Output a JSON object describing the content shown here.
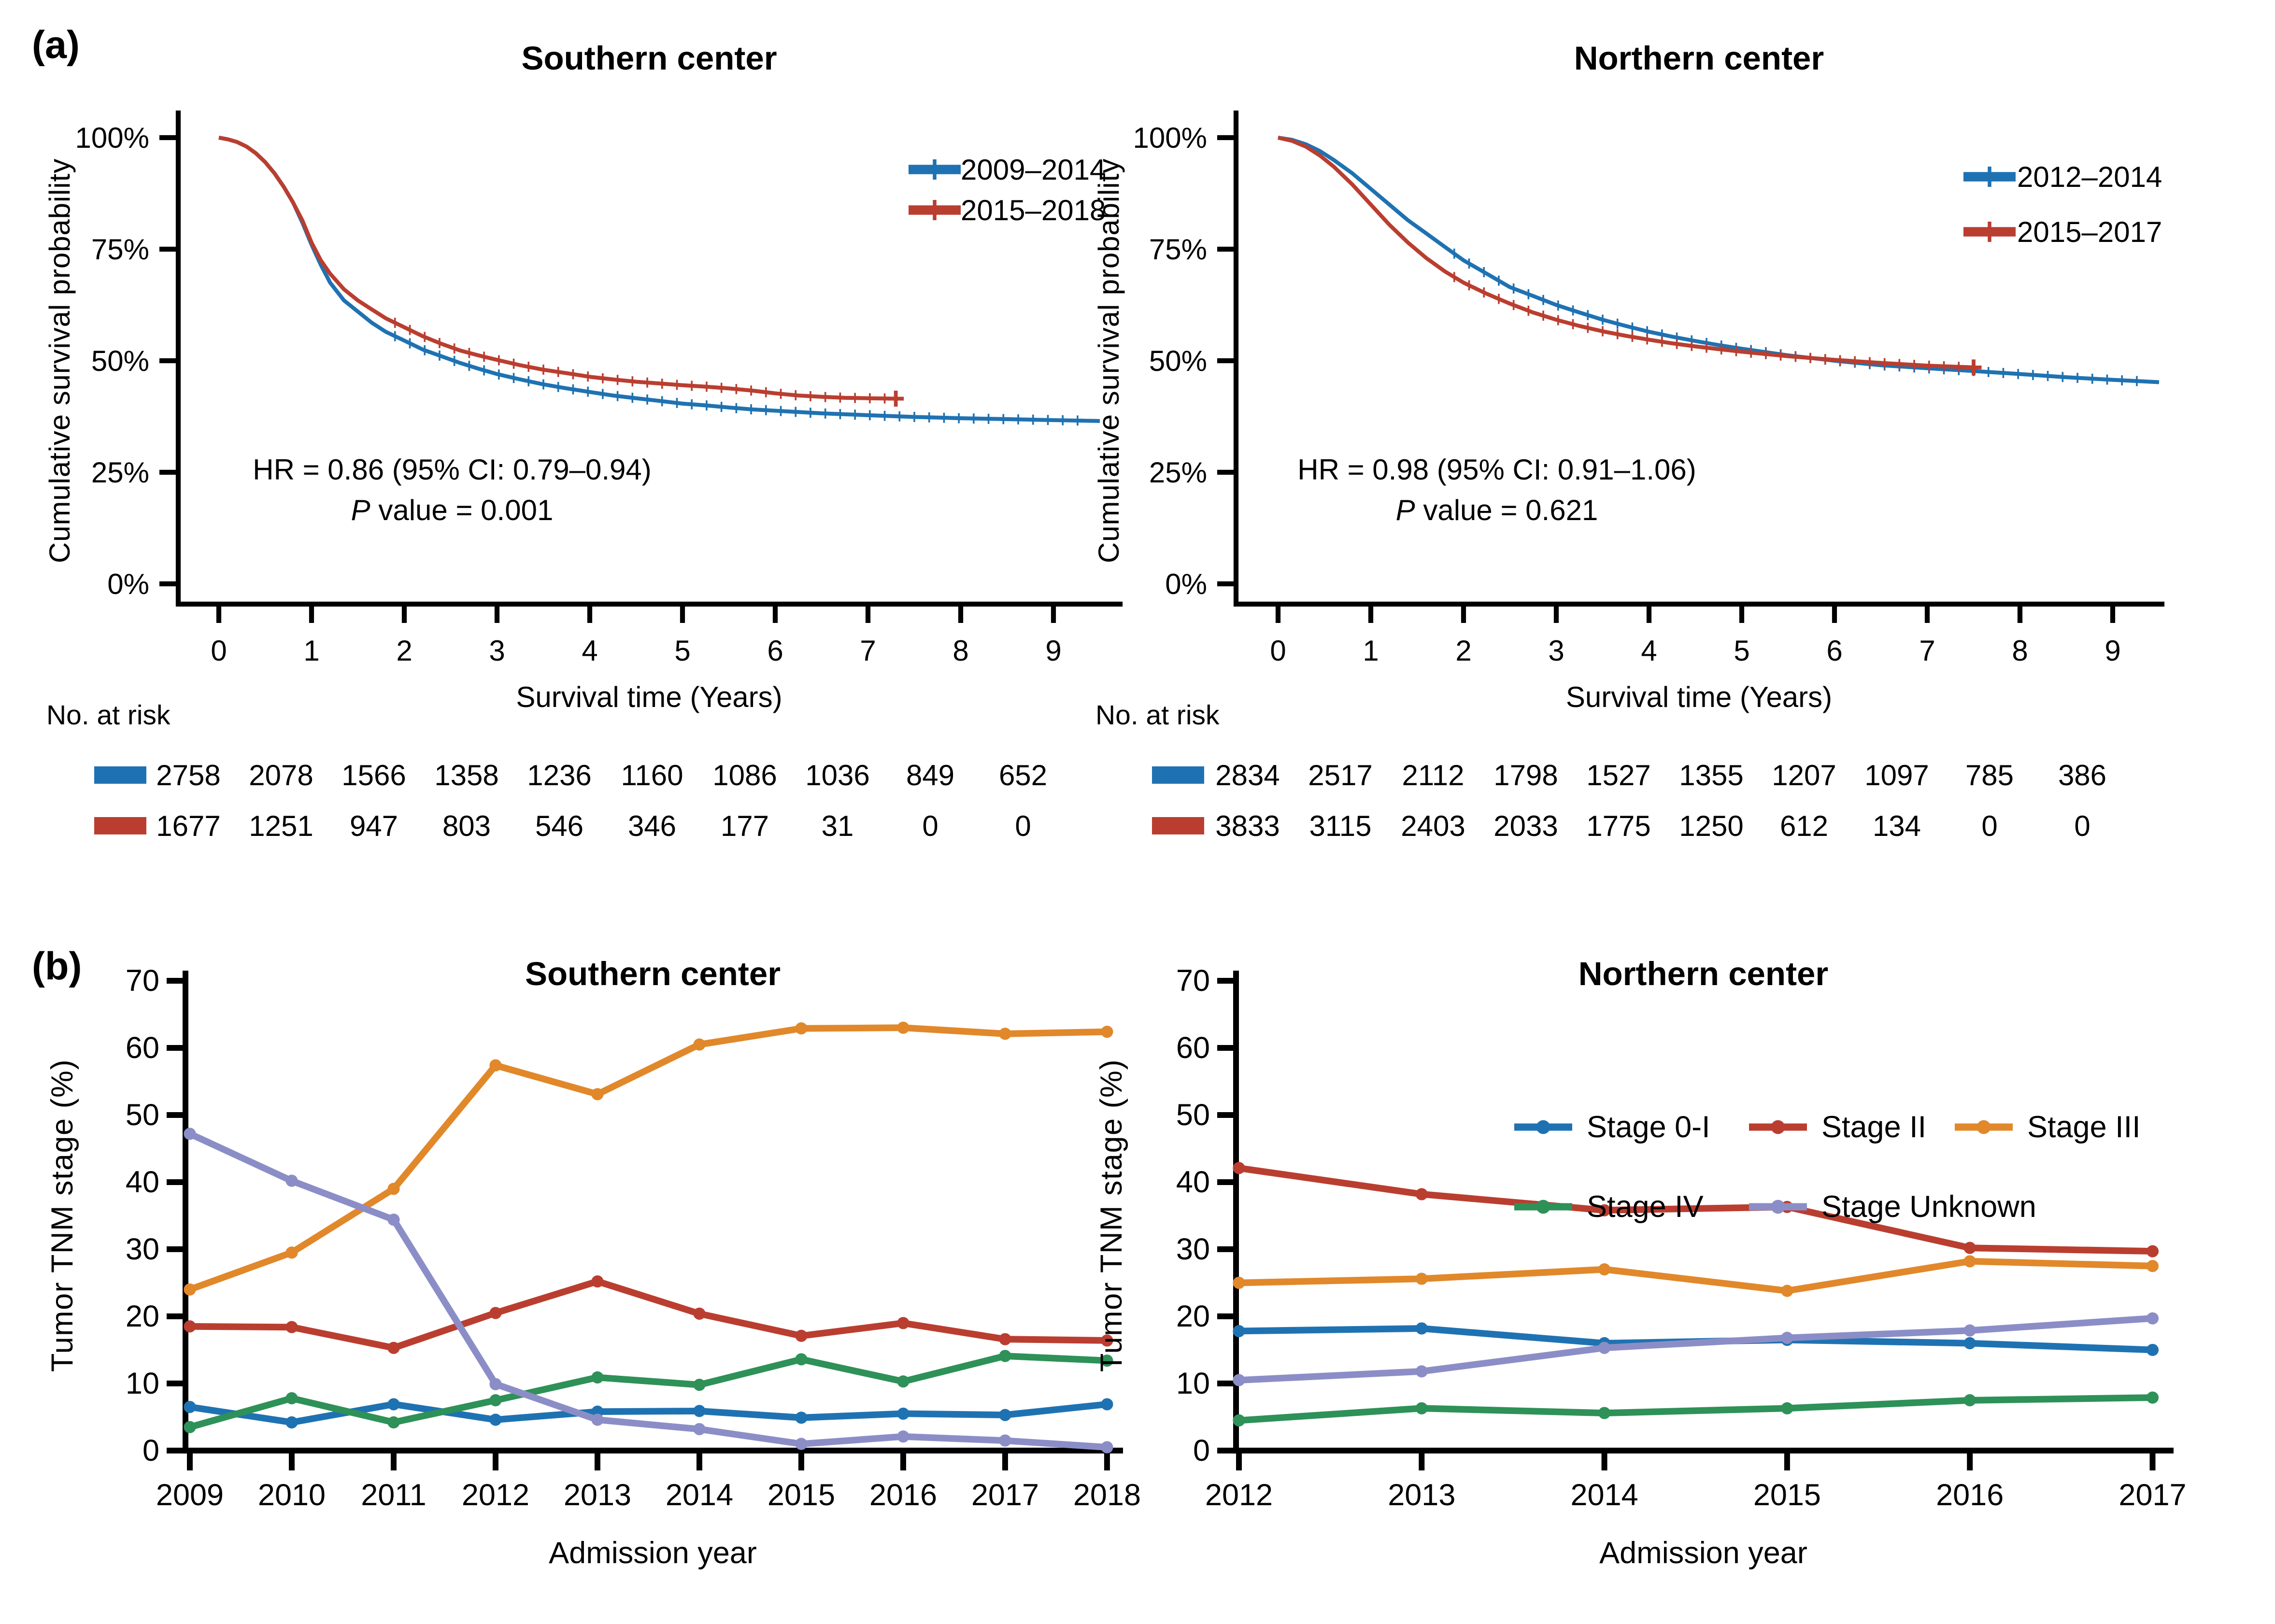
{
  "figure": {
    "background": "#FFFFFF"
  },
  "panel_a": {
    "label": "(a)"
  },
  "panel_b": {
    "label": "(b)"
  },
  "colors": {
    "blue": "#1F72B2",
    "red": "#BA3E30",
    "orange": "#E1882B",
    "green": "#2E9158",
    "purple": "#8B8EC6",
    "axis": "#000000"
  },
  "chart_data": [
    {
      "id": "km_southern",
      "type": "line",
      "subtype": "kaplan-meier",
      "title": "Southern center",
      "xlabel": "Survival time (Years)",
      "ylabel": "Cumulative survival probability",
      "xticks": [
        0,
        1,
        2,
        3,
        4,
        5,
        6,
        7,
        8,
        9
      ],
      "xlim": [
        0,
        9.5
      ],
      "ylim": [
        0,
        100
      ],
      "yticks": [
        {
          "v": 0,
          "label": "0%"
        },
        {
          "v": 25,
          "label": "25%"
        },
        {
          "v": 50,
          "label": "50%"
        },
        {
          "v": 75,
          "label": "75%"
        },
        {
          "v": 100,
          "label": "100%"
        }
      ],
      "legend_position": "top-right-inside",
      "annotation_hr": "HR = 0.86 (95% CI: 0.79–0.94)",
      "annotation_p_italic": "P",
      "annotation_p_rest": " value = 0.001",
      "risk_label": "No. at risk",
      "series": [
        {
          "name": "2009–2014",
          "color": "#1F72B2",
          "end_marker": false,
          "x": [
            0,
            0.1,
            0.2,
            0.3,
            0.4,
            0.5,
            0.6,
            0.7,
            0.8,
            0.9,
            1.0,
            1.1,
            1.2,
            1.35,
            1.5,
            1.65,
            1.8,
            2.0,
            2.2,
            2.4,
            2.6,
            2.8,
            3.0,
            3.25,
            3.5,
            3.75,
            4.0,
            4.25,
            4.5,
            4.75,
            5.0,
            5.25,
            5.5,
            5.75,
            6.0,
            6.5,
            7.0,
            7.5,
            8.0,
            8.5,
            9.0,
            9.5
          ],
          "y": [
            100,
            99.6,
            99,
            98,
            96.5,
            94.5,
            92,
            89,
            85.5,
            81,
            76,
            71.5,
            67.5,
            63.5,
            61,
            58.5,
            56.5,
            54.5,
            52.5,
            51,
            49.5,
            48.2,
            47,
            45.8,
            44.7,
            43.8,
            43,
            42.2,
            41.6,
            41,
            40.4,
            40,
            39.5,
            39.1,
            38.8,
            38.2,
            37.8,
            37.4,
            37.1,
            36.9,
            36.7,
            36.5
          ],
          "risk": [
            "2758",
            "2078",
            "1566",
            "1358",
            "1236",
            "1160",
            "1086",
            "1036",
            "849",
            "652"
          ]
        },
        {
          "name": "2015–2018",
          "color": "#BA3E30",
          "end_marker": true,
          "x": [
            0,
            0.1,
            0.2,
            0.3,
            0.4,
            0.5,
            0.6,
            0.7,
            0.8,
            0.9,
            1.0,
            1.1,
            1.2,
            1.35,
            1.5,
            1.65,
            1.8,
            2.0,
            2.2,
            2.4,
            2.6,
            2.8,
            3.0,
            3.25,
            3.5,
            3.75,
            4.0,
            4.25,
            4.5,
            4.75,
            5.0,
            5.25,
            5.5,
            5.75,
            6.0,
            6.25,
            6.5,
            6.75,
            7.0,
            7.3
          ],
          "y": [
            100,
            99.6,
            99,
            98,
            96.5,
            94.5,
            92,
            89,
            85.5,
            81.5,
            76.5,
            72.5,
            69.5,
            66,
            63.5,
            61.5,
            59.5,
            57.5,
            55.5,
            53.8,
            52.3,
            51.2,
            50.2,
            49,
            48,
            47.2,
            46.4,
            45.8,
            45.3,
            44.9,
            44.5,
            44.2,
            43.8,
            43.3,
            42.7,
            42.2,
            41.9,
            41.7,
            41.6,
            41.5
          ],
          "risk": [
            "1677",
            "1251",
            "947",
            "803",
            "546",
            "346",
            "177",
            "31",
            "0",
            "0"
          ]
        }
      ]
    },
    {
      "id": "km_northern",
      "type": "line",
      "subtype": "kaplan-meier",
      "title": "Northern center",
      "xlabel": "Survival time (Years)",
      "ylabel": "Cumulative survival probability",
      "xticks": [
        0,
        1,
        2,
        3,
        4,
        5,
        6,
        7,
        8,
        9
      ],
      "xlim": [
        0,
        9.5
      ],
      "ylim": [
        0,
        100
      ],
      "yticks": [
        {
          "v": 0,
          "label": "0%"
        },
        {
          "v": 25,
          "label": "25%"
        },
        {
          "v": 50,
          "label": "50%"
        },
        {
          "v": 75,
          "label": "75%"
        },
        {
          "v": 100,
          "label": "100%"
        }
      ],
      "legend_position": "top-right-inside",
      "annotation_hr": "HR = 0.98 (95% CI: 0.91–1.06)",
      "annotation_p_italic": "P",
      "annotation_p_rest": " value = 0.621",
      "risk_label": "No. at risk",
      "series": [
        {
          "name": "2012–2014",
          "color": "#1F72B2",
          "end_marker": false,
          "x": [
            0,
            0.15,
            0.3,
            0.45,
            0.6,
            0.8,
            1.0,
            1.2,
            1.4,
            1.6,
            1.8,
            2.0,
            2.25,
            2.5,
            2.75,
            3.0,
            3.25,
            3.5,
            3.75,
            4.0,
            4.25,
            4.5,
            4.75,
            5.0,
            5.5,
            6.0,
            6.5,
            7.0,
            7.5,
            8.0,
            8.5,
            9.0,
            9.5
          ],
          "y": [
            100,
            99.5,
            98.5,
            97,
            95,
            92,
            88.5,
            85,
            81.5,
            78.5,
            75.5,
            72.5,
            69.5,
            66.5,
            64.5,
            62.5,
            60.8,
            59.2,
            57.8,
            56.5,
            55.4,
            54.4,
            53.5,
            52.7,
            51.2,
            50,
            49,
            48.3,
            47.7,
            47,
            46.3,
            45.7,
            45.2
          ],
          "risk": [
            "2834",
            "2517",
            "2112",
            "1798",
            "1527",
            "1355",
            "1207",
            "1097",
            "785",
            "386"
          ]
        },
        {
          "name": "2015–2017",
          "color": "#BA3E30",
          "end_marker": true,
          "x": [
            0,
            0.15,
            0.3,
            0.45,
            0.6,
            0.8,
            1.0,
            1.2,
            1.4,
            1.6,
            1.8,
            2.0,
            2.25,
            2.5,
            2.75,
            3.0,
            3.25,
            3.5,
            3.75,
            4.0,
            4.25,
            4.5,
            4.75,
            5.0,
            5.5,
            6.0,
            6.5,
            7.0,
            7.5
          ],
          "y": [
            100,
            99.3,
            98,
            96,
            93.5,
            89.5,
            85,
            80.5,
            76.5,
            73,
            70,
            67.5,
            65,
            62.8,
            60.8,
            59.2,
            57.8,
            56.6,
            55.6,
            54.7,
            53.9,
            53.2,
            52.6,
            52,
            51,
            50.2,
            49.5,
            48.9,
            48.5
          ],
          "risk": [
            "3833",
            "3115",
            "2403",
            "2033",
            "1775",
            "1250",
            "612",
            "134",
            "0",
            "0"
          ]
        }
      ]
    },
    {
      "id": "stage_southern",
      "type": "line",
      "title": "Southern center",
      "xlabel": "Admission year",
      "ylabel": "Tumor TNM stage (%)",
      "categories": [
        "2009",
        "2010",
        "2011",
        "2012",
        "2013",
        "2014",
        "2015",
        "2016",
        "2017",
        "2018"
      ],
      "yticks": [
        0,
        10,
        20,
        30,
        40,
        50,
        60,
        70
      ],
      "ylim": [
        0,
        70
      ],
      "show_legend": false,
      "series": [
        {
          "name": "Stage 0-I",
          "color": "#1F72B2",
          "values": [
            6.5,
            4.2,
            6.9,
            4.6,
            5.8,
            5.9,
            4.9,
            5.5,
            5.3,
            6.9
          ]
        },
        {
          "name": "Stage II",
          "color": "#BA3E30",
          "values": [
            18.5,
            18.4,
            15.3,
            20.5,
            25.2,
            20.4,
            17.1,
            19.0,
            16.6,
            16.4
          ]
        },
        {
          "name": "Stage III",
          "color": "#E1882B",
          "values": [
            24.0,
            29.5,
            39.0,
            57.4,
            53.1,
            60.5,
            62.9,
            63.0,
            62.1,
            62.4
          ]
        },
        {
          "name": "Stage IV",
          "color": "#2E9158",
          "values": [
            3.5,
            7.8,
            4.2,
            7.5,
            10.9,
            9.8,
            13.6,
            10.3,
            14.1,
            13.4
          ]
        },
        {
          "name": "Stage Unknown",
          "color": "#8B8EC6",
          "values": [
            47.2,
            40.2,
            34.4,
            9.9,
            4.6,
            3.2,
            1.0,
            2.1,
            1.5,
            0.5
          ]
        }
      ]
    },
    {
      "id": "stage_northern",
      "type": "line",
      "title": "Northern center",
      "xlabel": "Admission year",
      "ylabel": "Tumor TNM stage (%)",
      "categories": [
        "2012",
        "2013",
        "2014",
        "2015",
        "2016",
        "2017"
      ],
      "yticks": [
        0,
        10,
        20,
        30,
        40,
        50,
        60,
        70
      ],
      "ylim": [
        0,
        70
      ],
      "show_legend": true,
      "legend_rows": [
        [
          0,
          1,
          2
        ],
        [
          3,
          4
        ]
      ],
      "series": [
        {
          "name": "Stage 0-I",
          "color": "#1F72B2",
          "values": [
            17.8,
            18.2,
            16.0,
            16.5,
            16.0,
            15.0
          ]
        },
        {
          "name": "Stage II",
          "color": "#BA3E30",
          "values": [
            42.1,
            38.2,
            35.8,
            36.3,
            30.2,
            29.7
          ]
        },
        {
          "name": "Stage III",
          "color": "#E1882B",
          "values": [
            25.0,
            25.6,
            27.0,
            23.8,
            28.2,
            27.5
          ]
        },
        {
          "name": "Stage IV",
          "color": "#2E9158",
          "values": [
            4.5,
            6.3,
            5.6,
            6.3,
            7.5,
            7.9
          ]
        },
        {
          "name": "Stage Unknown",
          "color": "#8B8EC6",
          "values": [
            10.5,
            11.8,
            15.3,
            16.8,
            17.9,
            19.7
          ]
        }
      ]
    }
  ]
}
